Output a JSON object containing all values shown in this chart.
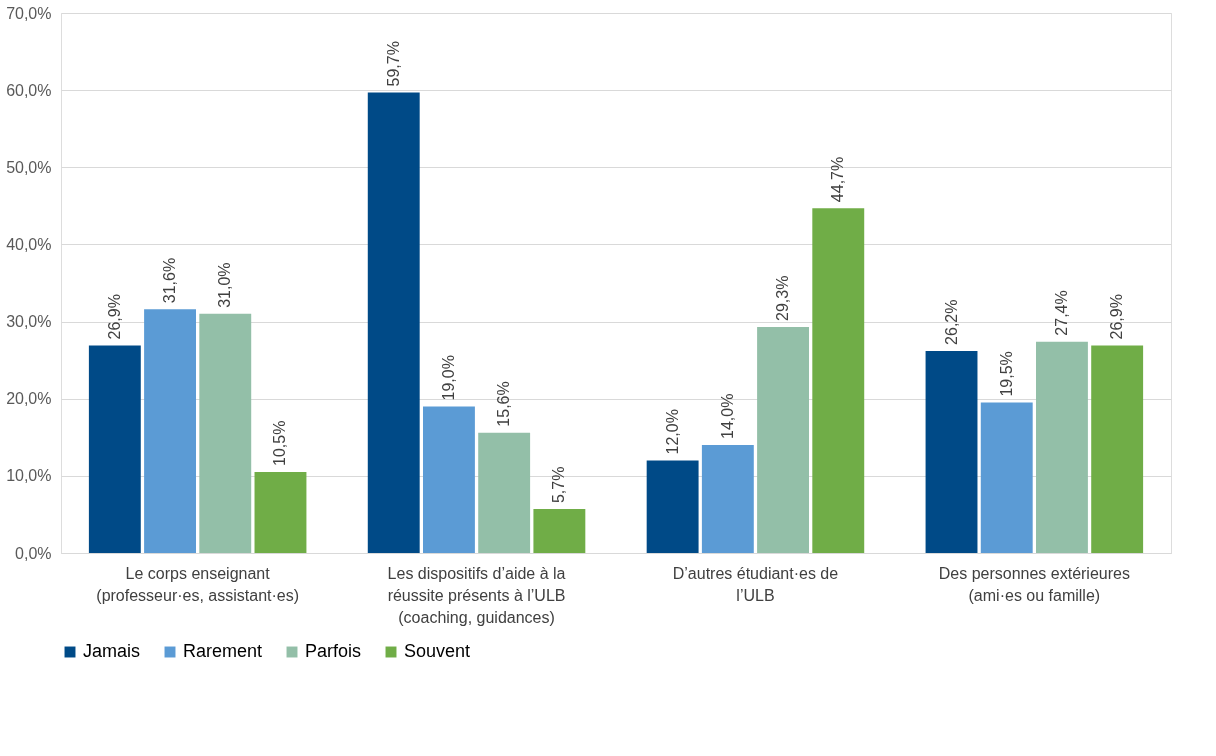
{
  "chart_data": {
    "type": "bar",
    "categories": [
      "Le corps enseignant (professeur·es, assistant·es)",
      "Les dispositifs d’aide à la réussite présents à l’ULB (coaching, guidances)",
      "D’autres étudiant·es de l’ULB",
      "Des personnes extérieures (ami·es ou famille)"
    ],
    "series": [
      {
        "name": "Jamais",
        "color": "#004a87",
        "values": [
          26.9,
          59.7,
          12.0,
          26.2
        ],
        "value_labels": [
          "26,9%",
          "59,7%",
          "12,0%",
          "26,2%"
        ]
      },
      {
        "name": "Rarement",
        "color": "#5b9bd5",
        "values": [
          31.6,
          19.0,
          14.0,
          19.5
        ],
        "value_labels": [
          "31,6%",
          "19,0%",
          "14,0%",
          "19,5%"
        ]
      },
      {
        "name": "Parfois",
        "color": "#93bfa8",
        "values": [
          31.0,
          15.6,
          29.3,
          27.4
        ],
        "value_labels": [
          "31,0%",
          "15,6%",
          "29,3%",
          "27,4%"
        ]
      },
      {
        "name": "Souvent",
        "color": "#70ad47",
        "values": [
          10.5,
          5.7,
          44.7,
          26.9
        ],
        "value_labels": [
          "10,5%",
          "5,7%",
          "44,7%",
          "26,9%"
        ]
      }
    ],
    "ylim": [
      0,
      70
    ],
    "yticks": [
      {
        "value": 0,
        "label": "0,0%"
      },
      {
        "value": 10,
        "label": "10,0%"
      },
      {
        "value": 20,
        "label": "20,0%"
      },
      {
        "value": 30,
        "label": "30,0%"
      },
      {
        "value": 40,
        "label": "40,0%"
      },
      {
        "value": 50,
        "label": "50,0%"
      },
      {
        "value": 60,
        "label": "60,0%"
      },
      {
        "value": 70,
        "label": "70,0%"
      }
    ],
    "grid": "y",
    "legend": "bottom"
  }
}
